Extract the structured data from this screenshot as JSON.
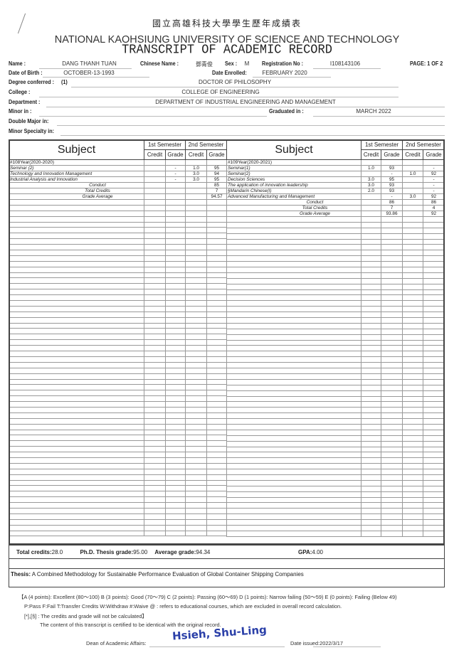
{
  "header": {
    "title_cn": "國立高雄科技大學學生歷年成績表",
    "university": "NATIONAL KAOHSIUNG UNIVERSITY OF SCIENCE AND TECHNOLOGY",
    "title": "TRANSCRIPT OF ACADEMIC RECORD",
    "page": "PAGE: 1 OF 2"
  },
  "student": {
    "name_label": "Name :",
    "name": "DANG THANH TUAN",
    "cname_label": "Chinese Name :",
    "cname": "鄧青俊",
    "sex_label": "Sex :",
    "sex": "M",
    "reg_label": "Registration No :",
    "reg": "I108143106",
    "dob_label": "Date of Birth :",
    "dob": "OCTOBER-13-1993",
    "enrolled_label": "Date Enrolled:",
    "enrolled": "FEBRUARY 2020",
    "degree_label": "Degree conferred :",
    "degree_no": "(1)",
    "degree": "DOCTOR OF PHILOSOPHY",
    "college_label": "College :",
    "college": "COLLEGE OF ENGINEERING",
    "dept_label": "Department :",
    "dept": "DEPARTMENT OF INDUSTRIAL ENGINEERING AND MANAGEMENT",
    "minor_label": "Minor in :",
    "grad_label": "Graduated in :",
    "grad": "MARCH  2022",
    "double_label": "Double Major in:",
    "specialty_label": "Minor Specialty in:"
  },
  "table_headers": {
    "subject": "Subject",
    "sem1": "1st Semester",
    "sem2": "2nd Semester",
    "credit": "Credit",
    "grade": "Grade"
  },
  "left_rows": [
    {
      "subject": "#108Year(2020-2020)",
      "type": "year",
      "c1": "",
      "g1": "",
      "c2": "",
      "g2": ""
    },
    {
      "subject": "Seminar (2)",
      "c1": "",
      "g1": "-",
      "c2": "1.0",
      "g2": "95"
    },
    {
      "subject": "Technology and Innovation Management",
      "c1": "",
      "g1": "-",
      "c2": "3.0",
      "g2": "94"
    },
    {
      "subject": "Industrial Analysis and Innovation",
      "c1": "",
      "g1": "-",
      "c2": "3.0",
      "g2": "95"
    },
    {
      "subject": "Conduct",
      "type": "sum",
      "c1": "",
      "g1": "",
      "c2": "",
      "g2": "85"
    },
    {
      "subject": "Total Credits",
      "type": "sum",
      "c1": "",
      "g1": "",
      "c2": "",
      "g2": "7"
    },
    {
      "subject": "Grade Average",
      "type": "sum",
      "c1": "",
      "g1": "",
      "c2": "",
      "g2": "94.57"
    }
  ],
  "right_rows": [
    {
      "subject": "#109Year(2020-2021)",
      "type": "year",
      "c1": "",
      "g1": "",
      "c2": "",
      "g2": ""
    },
    {
      "subject": "Seminar(1)",
      "c1": "1.0",
      "g1": "93",
      "c2": "",
      "g2": "-"
    },
    {
      "subject": "Seminar(2)",
      "c1": "",
      "g1": "-",
      "c2": "1.0",
      "g2": "92"
    },
    {
      "subject": "Decision Sciences",
      "c1": "3.0",
      "g1": "95",
      "c2": "",
      "g2": "-"
    },
    {
      "subject": "The application of innovation leadership",
      "c1": "3.0",
      "g1": "93",
      "c2": "",
      "g2": "-"
    },
    {
      "subject": "§Mandarin Chinese(I)",
      "c1": "2.0",
      "g1": "93",
      "c2": "",
      "g2": "-"
    },
    {
      "subject": "Advanced Manufacturing and Management",
      "c1": "",
      "g1": "-",
      "c2": "3.0",
      "g2": "92"
    },
    {
      "subject": "Conduct",
      "type": "sum",
      "c1": "",
      "g1": "86",
      "c2": "",
      "g2": "86"
    },
    {
      "subject": "Total Credits",
      "type": "sum",
      "c1": "",
      "g1": "7",
      "c2": "",
      "g2": "4"
    },
    {
      "subject": "Grade Average",
      "type": "sum",
      "c1": "",
      "g1": "93.86",
      "c2": "",
      "g2": "92"
    }
  ],
  "summary": {
    "total_label": "Total  credits:",
    "total": "28.0",
    "thesis_grade_label": "Ph.D. Thesis grade:",
    "thesis_grade": "95.00",
    "avg_label": "Average grade:",
    "avg": "94.34",
    "gpa_label": "GPA:",
    "gpa": "4.00"
  },
  "thesis": {
    "label": "Thesis:",
    "title": "A Combined Methodology for Sustainable Performance Evaluation of Global Container Shipping Companies"
  },
  "legend": {
    "line1": "【A (4 points): Excellent (80～100) B (3 points): Good (70～79) C (2 points): Passing (60～69)  D (1 points): Narrow failing (50～59) E (0 points): Failing (Below 49)",
    "line2": "P:Pass  F:Fail  T:Transfer Credits   W:Withdraw  #:Waive   @ : refers to educational courses, which are excluded in overall record calculation.",
    "line3": "[*],[§] : The credits and grade will not be calculated】",
    "certify": "The content of this transcript is certified to be identical with the original record."
  },
  "signoff": {
    "dean_label": "Dean of Academic Affairs:",
    "signature": "Hsieh, Shu-Ling",
    "date_label": "Date issued:",
    "date": "2022/3/17"
  }
}
